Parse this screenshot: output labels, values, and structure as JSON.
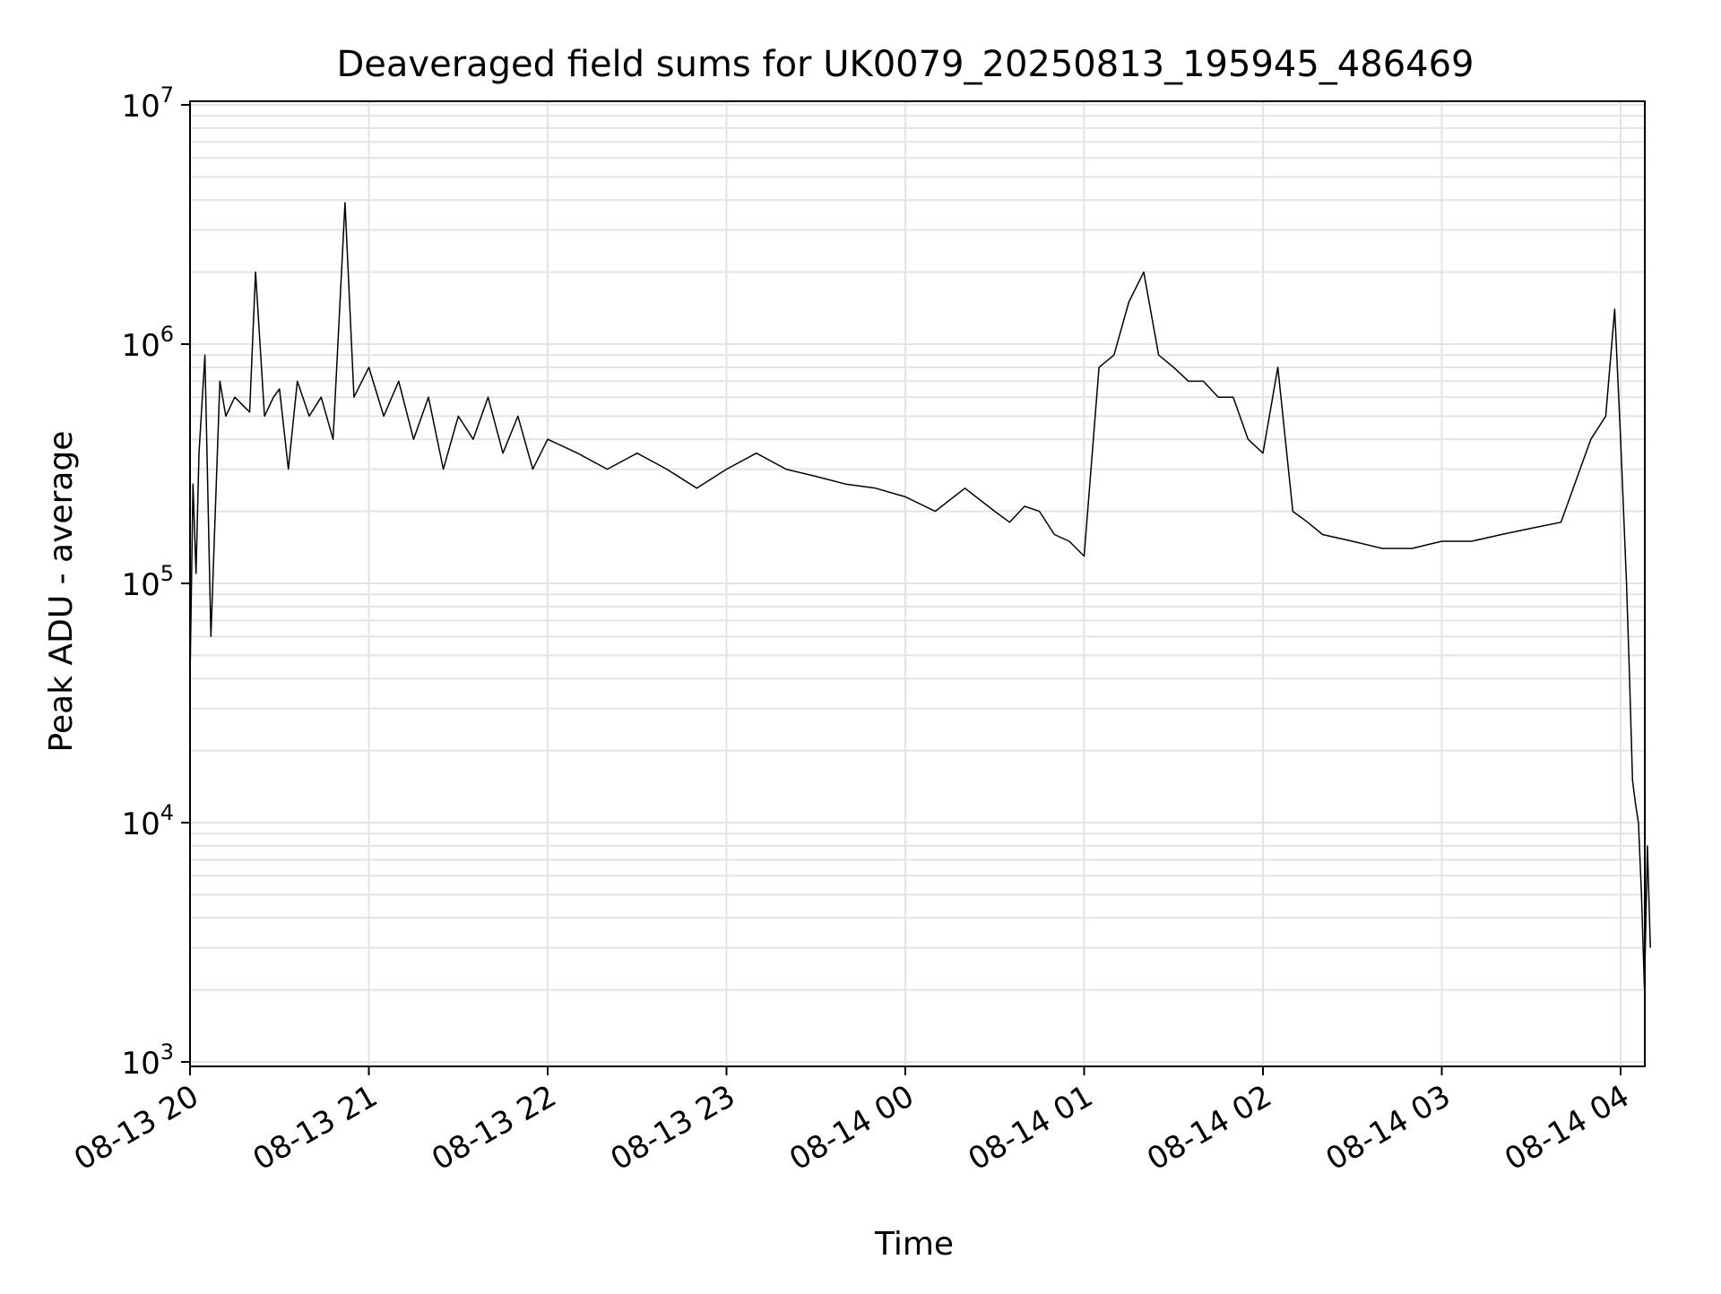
{
  "chart_data": {
    "type": "line",
    "title": "Deaveraged field sums for UK0079_20250813_195945_486469",
    "xlabel": "Time",
    "ylabel": "Peak ADU - average",
    "y_scale": "log",
    "ylim": [
      1000,
      10000000
    ],
    "y_ticks": [
      {
        "value": 1000,
        "base": "10",
        "exp": "3"
      },
      {
        "value": 10000,
        "base": "10",
        "exp": "4"
      },
      {
        "value": 100000,
        "base": "10",
        "exp": "5"
      },
      {
        "value": 1000000,
        "base": "10",
        "exp": "6"
      },
      {
        "value": 10000000,
        "base": "10",
        "exp": "7"
      }
    ],
    "xlim": [
      "2025-08-13T20:00",
      "2025-08-14T04:10"
    ],
    "x_ticks": [
      {
        "time": "2025-08-13T20:00",
        "label": "08-13 20"
      },
      {
        "time": "2025-08-13T21:00",
        "label": "08-13 21"
      },
      {
        "time": "2025-08-13T22:00",
        "label": "08-13 22"
      },
      {
        "time": "2025-08-13T23:00",
        "label": "08-13 23"
      },
      {
        "time": "2025-08-14T00:00",
        "label": "08-14 00"
      },
      {
        "time": "2025-08-14T01:00",
        "label": "08-14 01"
      },
      {
        "time": "2025-08-14T02:00",
        "label": "08-14 02"
      },
      {
        "time": "2025-08-14T03:00",
        "label": "08-14 03"
      },
      {
        "time": "2025-08-14T04:00",
        "label": "08-14 04"
      }
    ],
    "grid": true,
    "grid_minor_y": true,
    "line_color": "#000000",
    "series": [
      {
        "x": [
          "2025-08-13T20:00",
          "2025-08-13T20:01",
          "2025-08-13T20:02",
          "2025-08-13T20:03",
          "2025-08-13T20:05",
          "2025-08-13T20:07",
          "2025-08-13T20:10",
          "2025-08-13T20:12",
          "2025-08-13T20:15",
          "2025-08-13T20:18",
          "2025-08-13T20:20",
          "2025-08-13T20:22",
          "2025-08-13T20:25",
          "2025-08-13T20:28",
          "2025-08-13T20:30",
          "2025-08-13T20:33",
          "2025-08-13T20:36",
          "2025-08-13T20:40",
          "2025-08-13T20:44",
          "2025-08-13T20:48",
          "2025-08-13T20:52",
          "2025-08-13T20:55",
          "2025-08-13T21:00",
          "2025-08-13T21:05",
          "2025-08-13T21:10",
          "2025-08-13T21:15",
          "2025-08-13T21:20",
          "2025-08-13T21:25",
          "2025-08-13T21:30",
          "2025-08-13T21:35",
          "2025-08-13T21:40",
          "2025-08-13T21:45",
          "2025-08-13T21:50",
          "2025-08-13T21:55",
          "2025-08-13T22:00",
          "2025-08-13T22:10",
          "2025-08-13T22:20",
          "2025-08-13T22:30",
          "2025-08-13T22:40",
          "2025-08-13T22:50",
          "2025-08-13T23:00",
          "2025-08-13T23:10",
          "2025-08-13T23:20",
          "2025-08-13T23:30",
          "2025-08-13T23:40",
          "2025-08-13T23:50",
          "2025-08-14T00:00",
          "2025-08-14T00:10",
          "2025-08-14T00:20",
          "2025-08-14T00:30",
          "2025-08-14T00:35",
          "2025-08-14T00:40",
          "2025-08-14T00:45",
          "2025-08-14T00:50",
          "2025-08-14T00:55",
          "2025-08-14T01:00",
          "2025-08-14T01:05",
          "2025-08-14T01:10",
          "2025-08-14T01:15",
          "2025-08-14T01:20",
          "2025-08-14T01:25",
          "2025-08-14T01:30",
          "2025-08-14T01:35",
          "2025-08-14T01:40",
          "2025-08-14T01:45",
          "2025-08-14T01:50",
          "2025-08-14T01:55",
          "2025-08-14T02:00",
          "2025-08-14T02:05",
          "2025-08-14T02:10",
          "2025-08-14T02:15",
          "2025-08-14T02:20",
          "2025-08-14T02:30",
          "2025-08-14T02:40",
          "2025-08-14T02:50",
          "2025-08-14T03:00",
          "2025-08-14T03:10",
          "2025-08-14T03:20",
          "2025-08-14T03:30",
          "2025-08-14T03:40",
          "2025-08-14T03:50",
          "2025-08-14T03:55",
          "2025-08-14T03:58",
          "2025-08-14T04:00",
          "2025-08-14T04:02",
          "2025-08-14T04:03",
          "2025-08-14T04:04",
          "2025-08-14T04:05",
          "2025-08-14T04:06",
          "2025-08-14T04:07",
          "2025-08-14T04:08",
          "2025-08-14T04:09",
          "2025-08-14T04:10"
        ],
        "y": [
          40000,
          260000,
          110000,
          350000,
          900000,
          60000,
          700000,
          500000,
          600000,
          550000,
          520000,
          2000000,
          500000,
          600000,
          650000,
          300000,
          700000,
          500000,
          600000,
          400000,
          3900000,
          600000,
          800000,
          500000,
          700000,
          400000,
          600000,
          300000,
          500000,
          400000,
          600000,
          350000,
          500000,
          300000,
          400000,
          350000,
          300000,
          350000,
          300000,
          250000,
          300000,
          350000,
          300000,
          280000,
          260000,
          250000,
          230000,
          200000,
          250000,
          200000,
          180000,
          210000,
          200000,
          160000,
          150000,
          130000,
          800000,
          900000,
          1500000,
          2000000,
          900000,
          800000,
          700000,
          700000,
          600000,
          600000,
          400000,
          350000,
          800000,
          200000,
          180000,
          160000,
          150000,
          140000,
          140000,
          150000,
          150000,
          160000,
          170000,
          180000,
          400000,
          500000,
          1400000,
          400000,
          100000,
          40000,
          15000,
          12000,
          10000,
          5000,
          2000,
          8000,
          3000
        ]
      }
    ]
  }
}
